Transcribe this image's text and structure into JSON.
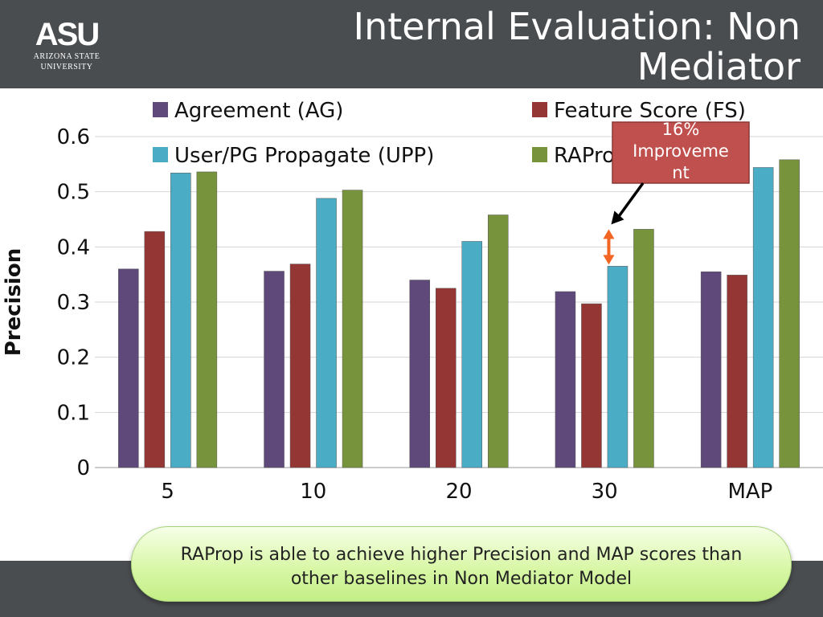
{
  "slide": {
    "title": "Internal Evaluation: Non Mediator",
    "logo": {
      "mark": "ASU",
      "line1": "Arizona State",
      "line2": "University"
    },
    "note": "RAProp is able to achieve higher Precision and MAP scores than other baselines in Non Mediator Model"
  },
  "colors": {
    "header": "#4a4d50",
    "AG": "#5e497a",
    "FS": "#943634",
    "UPP": "#4bacc6",
    "RAProp": "#77933c",
    "annotation_box": "#c0504d",
    "arrow": "#f26522"
  },
  "chart_data": {
    "type": "bar",
    "categories": [
      "5",
      "10",
      "20",
      "30",
      "MAP"
    ],
    "series": [
      {
        "name": "Agreement (AG)",
        "values": [
          0.36,
          0.356,
          0.34,
          0.319,
          0.355
        ]
      },
      {
        "name": "Feature Score (FS)",
        "values": [
          0.428,
          0.369,
          0.325,
          0.297,
          0.349
        ]
      },
      {
        "name": "User/PG Propagate (UPP)",
        "values": [
          0.534,
          0.488,
          0.41,
          0.365,
          0.544
        ]
      },
      {
        "name": "RAProp",
        "values": [
          0.536,
          0.503,
          0.458,
          0.432,
          0.558
        ]
      }
    ],
    "ylabel": "Precision",
    "xlabel": "",
    "ylim": [
      0,
      0.6
    ],
    "yticks": [
      "0",
      "0.1",
      "0.2",
      "0.3",
      "0.4",
      "0.5",
      "0.6"
    ],
    "grid": true,
    "legend": "top",
    "annotation": {
      "text": "16% Improvement",
      "category": "30",
      "from_value": 0.365,
      "to_value": 0.432
    }
  }
}
